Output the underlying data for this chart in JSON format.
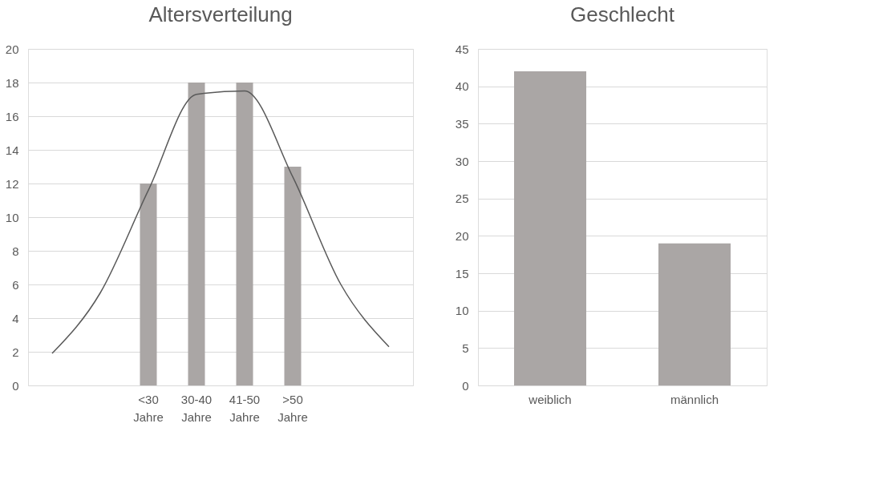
{
  "chart_data": [
    {
      "type": "bar",
      "title": "Altersverteilung",
      "categories": [
        null,
        null,
        "<30 Jahre",
        "30-40 Jahre",
        "41-50 Jahre",
        ">50 Jahre",
        null,
        null
      ],
      "series": [
        {
          "color": "#aaa6a5",
          "values": [
            null,
            null,
            12,
            18,
            18,
            13,
            null,
            null
          ]
        },
        {
          "type": "line",
          "color": "#595959",
          "values": [
            1.9,
            5.5,
            11.6,
            17.3,
            17.5,
            12.4,
            6.0,
            2.3
          ]
        }
      ],
      "ylim": [
        0,
        20
      ],
      "yticks": [
        0,
        2,
        4,
        6,
        8,
        10,
        12,
        14,
        16,
        18,
        20
      ],
      "grid": "y",
      "marker": "none",
      "line_style": "solid"
    },
    {
      "type": "bar",
      "title": "Geschlecht",
      "categories": [
        "weiblich",
        "männlich"
      ],
      "series": [
        {
          "color": "#aaa6a5",
          "values": [
            42,
            19
          ]
        }
      ],
      "ylim": [
        0,
        45
      ],
      "yticks": [
        0,
        5,
        10,
        15,
        20,
        25,
        30,
        35,
        40,
        45
      ],
      "grid": "y"
    }
  ]
}
